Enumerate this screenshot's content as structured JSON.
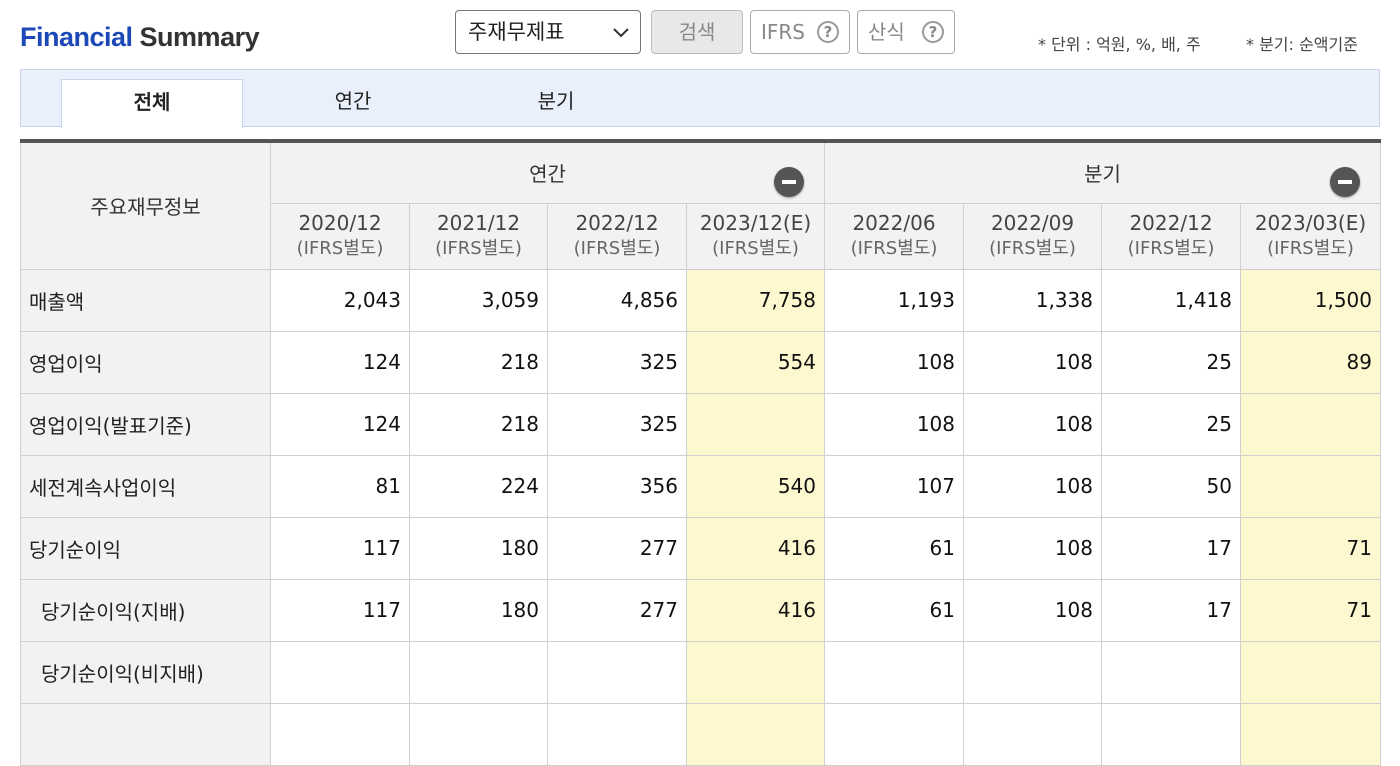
{
  "header": {
    "title_part1": "Financial",
    "title_part2": "Summary",
    "select_value": "주재무제표",
    "search_label": "검색",
    "ifrs_label": "IFRS",
    "formula_label": "산식",
    "help_glyph": "?",
    "unit_note": "* 단위 : 억원, %, 배, 주",
    "quarter_note": "* 분기: 순액기준"
  },
  "tabs": [
    {
      "label": "전체",
      "active": true
    },
    {
      "label": "연간",
      "active": false
    },
    {
      "label": "분기",
      "active": false
    }
  ],
  "table": {
    "corner_label": "주요재무정보",
    "group_annual": "연간",
    "group_quarter": "분기",
    "columns": [
      {
        "period": "2020/12",
        "basis": "(IFRS별도)",
        "estimate": false
      },
      {
        "period": "2021/12",
        "basis": "(IFRS별도)",
        "estimate": false
      },
      {
        "period": "2022/12",
        "basis": "(IFRS별도)",
        "estimate": false
      },
      {
        "period": "2023/12(E)",
        "basis": "(IFRS별도)",
        "estimate": true
      },
      {
        "period": "2022/06",
        "basis": "(IFRS별도)",
        "estimate": false
      },
      {
        "period": "2022/09",
        "basis": "(IFRS별도)",
        "estimate": false
      },
      {
        "period": "2022/12",
        "basis": "(IFRS별도)",
        "estimate": false
      },
      {
        "period": "2023/03(E)",
        "basis": "(IFRS별도)",
        "estimate": true
      }
    ],
    "rows": [
      {
        "label": "매출액",
        "indent": false,
        "values": [
          "2,043",
          "3,059",
          "4,856",
          "7,758",
          "1,193",
          "1,338",
          "1,418",
          "1,500"
        ]
      },
      {
        "label": "영업이익",
        "indent": false,
        "values": [
          "124",
          "218",
          "325",
          "554",
          "108",
          "108",
          "25",
          "89"
        ]
      },
      {
        "label": "영업이익(발표기준)",
        "indent": false,
        "values": [
          "124",
          "218",
          "325",
          "",
          "108",
          "108",
          "25",
          ""
        ]
      },
      {
        "label": "세전계속사업이익",
        "indent": false,
        "values": [
          "81",
          "224",
          "356",
          "540",
          "107",
          "108",
          "50",
          ""
        ]
      },
      {
        "label": "당기순이익",
        "indent": false,
        "values": [
          "117",
          "180",
          "277",
          "416",
          "61",
          "108",
          "17",
          "71"
        ]
      },
      {
        "label": "당기순이익(지배)",
        "indent": true,
        "values": [
          "117",
          "180",
          "277",
          "416",
          "61",
          "108",
          "17",
          "71"
        ]
      },
      {
        "label": "당기순이익(비지배)",
        "indent": true,
        "values": [
          "",
          "",
          "",
          "",
          "",
          "",
          "",
          ""
        ]
      },
      {
        "label": "",
        "indent": false,
        "values": [
          "",
          "",
          "",
          "",
          "",
          "",
          "",
          ""
        ]
      }
    ]
  },
  "colors": {
    "title_blue": "#1d49b8",
    "tab_bg": "#e9f0fb",
    "estimate_bg": "#fdf8d0",
    "header_bg": "#f2f2f2"
  }
}
